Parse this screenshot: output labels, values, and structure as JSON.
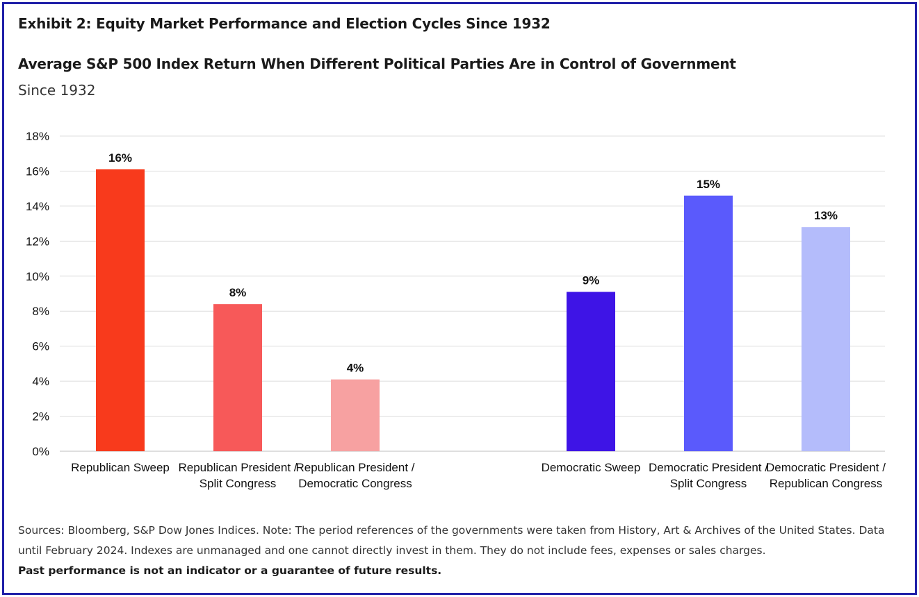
{
  "exhibit_title": "Exhibit 2: Equity Market Performance and Election Cycles Since 1932",
  "chart_data": {
    "type": "bar",
    "title": "Average S&P 500 Index Return When Different Political Parties Are in Control of Government",
    "subtitle": "Since 1932",
    "ylim": [
      0,
      18
    ],
    "yticks": [
      "0%",
      "2%",
      "4%",
      "6%",
      "8%",
      "10%",
      "12%",
      "14%",
      "16%",
      "18%"
    ],
    "ytick_values": [
      0,
      2,
      4,
      6,
      8,
      10,
      12,
      14,
      16,
      18
    ],
    "grid": true,
    "categories": [
      [
        "Republican Sweep"
      ],
      [
        "Republican President /",
        "Split Congress"
      ],
      [
        "Republican President /",
        "Democratic Congress"
      ],
      [
        "Democratic Sweep"
      ],
      [
        "Democratic President /",
        "Split Congress"
      ],
      [
        "Democratic President /",
        "Republican Congress"
      ]
    ],
    "values": [
      16.1,
      8.4,
      4.1,
      9.1,
      14.6,
      12.8
    ],
    "data_labels": [
      "16%",
      "8%",
      "4%",
      "9%",
      "15%",
      "13%"
    ],
    "colors": [
      "#f83a1c",
      "#f75959",
      "#f7a1a1",
      "#3e14e6",
      "#5a5afc",
      "#b4bcfb"
    ]
  },
  "footer": {
    "sources": "Sources: Bloomberg, S&P Dow Jones Indices. Note: The period references of the governments were taken from History, Art & Archives of the United States. Data until February 2024. Indexes are unmanaged and one cannot directly invest in them. They do not include fees, expenses or sales charges.",
    "disclaimer": "Past performance is not an indicator or a guarantee of future results."
  }
}
